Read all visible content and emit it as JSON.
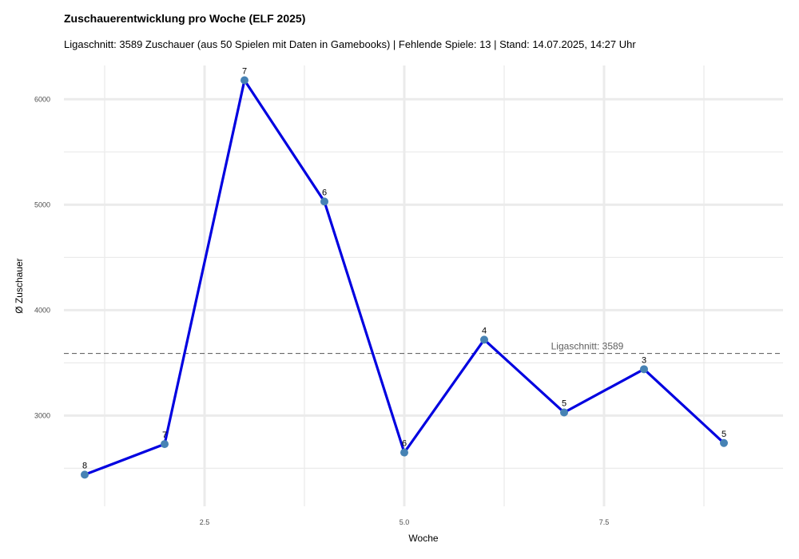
{
  "chart_data": {
    "type": "line",
    "title": "Zuschauerentwicklung pro Woche (ELF 2025)",
    "subtitle": "Ligaschnitt: 3589 Zuschauer (aus 50 Spielen mit Daten in Gamebooks) | Fehlende Spiele: 13 | Stand: 14.07.2025, 14:27 Uhr",
    "xlabel": "Woche",
    "ylabel": "Ø Zuschauer",
    "xlim": [
      0.74,
      9.74
    ],
    "ylim": [
      2140,
      6320
    ],
    "x_ticks": [
      2.5,
      5.0,
      7.5
    ],
    "x_tick_labels": [
      "2.5",
      "5.0",
      "7.5"
    ],
    "y_ticks": [
      3000,
      4000,
      5000,
      6000
    ],
    "y_tick_labels": [
      "3000",
      "4000",
      "5000",
      "6000"
    ],
    "grid": true,
    "series": [
      {
        "color": "#0000e0",
        "marker_color": "#4682b4",
        "points": [
          {
            "x": 1,
            "y": 2440,
            "label": "8"
          },
          {
            "x": 2,
            "y": 2730,
            "label": "7"
          },
          {
            "x": 3,
            "y": 6180,
            "label": "7"
          },
          {
            "x": 4,
            "y": 5030,
            "label": "6"
          },
          {
            "x": 5,
            "y": 2650,
            "label": "6"
          },
          {
            "x": 6,
            "y": 3720,
            "label": "4"
          },
          {
            "x": 7,
            "y": 3030,
            "label": "5"
          },
          {
            "x": 8,
            "y": 3440,
            "label": "3"
          },
          {
            "x": 9,
            "y": 2740,
            "label": "5"
          }
        ]
      }
    ],
    "reference_line": {
      "y": 3589,
      "label": "Ligaschnitt: 3589",
      "style": "dashed"
    }
  }
}
